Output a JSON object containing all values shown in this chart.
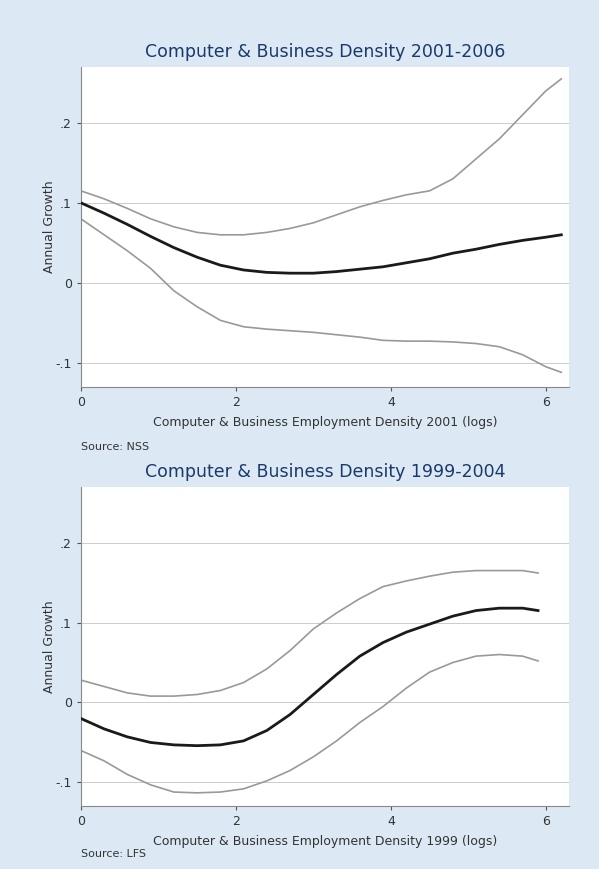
{
  "panel1": {
    "title": "Computer & Business Density 2001-2006",
    "xlabel": "Computer & Business Employment Density 2001 (logs)",
    "ylabel": "Annual Growth",
    "source": "Source: NSS",
    "xlim": [
      0,
      6.3
    ],
    "ylim": [
      -0.13,
      0.27
    ],
    "yticks": [
      -0.1,
      0,
      0.1,
      0.2
    ],
    "xticks": [
      0,
      2,
      4,
      6
    ],
    "main_x": [
      0.0,
      0.3,
      0.6,
      0.9,
      1.2,
      1.5,
      1.8,
      2.1,
      2.4,
      2.7,
      3.0,
      3.3,
      3.6,
      3.9,
      4.2,
      4.5,
      4.8,
      5.1,
      5.4,
      5.7,
      6.0,
      6.2
    ],
    "main_y": [
      0.1,
      0.087,
      0.073,
      0.058,
      0.044,
      0.032,
      0.022,
      0.016,
      0.013,
      0.012,
      0.012,
      0.014,
      0.017,
      0.02,
      0.025,
      0.03,
      0.037,
      0.042,
      0.048,
      0.053,
      0.057,
      0.06
    ],
    "upper_x": [
      0.0,
      0.3,
      0.6,
      0.9,
      1.2,
      1.5,
      1.8,
      2.1,
      2.4,
      2.7,
      3.0,
      3.3,
      3.6,
      3.9,
      4.2,
      4.5,
      4.8,
      5.1,
      5.4,
      5.7,
      6.0,
      6.2
    ],
    "upper_y": [
      0.115,
      0.105,
      0.093,
      0.08,
      0.07,
      0.063,
      0.06,
      0.06,
      0.063,
      0.068,
      0.075,
      0.085,
      0.095,
      0.103,
      0.11,
      0.115,
      0.13,
      0.155,
      0.18,
      0.21,
      0.24,
      0.255
    ],
    "lower_x": [
      0.0,
      0.3,
      0.6,
      0.9,
      1.2,
      1.5,
      1.8,
      2.1,
      2.4,
      2.7,
      3.0,
      3.3,
      3.6,
      3.9,
      4.2,
      4.5,
      4.8,
      5.1,
      5.4,
      5.7,
      6.0,
      6.2
    ],
    "lower_y": [
      0.08,
      0.06,
      0.04,
      0.018,
      -0.01,
      -0.03,
      -0.047,
      -0.055,
      -0.058,
      -0.06,
      -0.062,
      -0.065,
      -0.068,
      -0.072,
      -0.073,
      -0.073,
      -0.074,
      -0.076,
      -0.08,
      -0.09,
      -0.105,
      -0.112
    ]
  },
  "panel2": {
    "title": "Computer & Business Density 1999-2004",
    "xlabel": "Computer & Business Employment Density 1999 (logs)",
    "ylabel": "Annual Growth",
    "source": "Source: LFS",
    "xlim": [
      0,
      6.3
    ],
    "ylim": [
      -0.13,
      0.27
    ],
    "yticks": [
      -0.1,
      0,
      0.1,
      0.2
    ],
    "xticks": [
      0,
      2,
      4,
      6
    ],
    "main_x": [
      0.0,
      0.3,
      0.6,
      0.9,
      1.2,
      1.5,
      1.8,
      2.1,
      2.4,
      2.7,
      3.0,
      3.3,
      3.6,
      3.9,
      4.2,
      4.5,
      4.8,
      5.1,
      5.4,
      5.7,
      5.9
    ],
    "main_y": [
      -0.02,
      -0.033,
      -0.043,
      -0.05,
      -0.053,
      -0.054,
      -0.053,
      -0.048,
      -0.035,
      -0.015,
      0.01,
      0.035,
      0.058,
      0.075,
      0.088,
      0.098,
      0.108,
      0.115,
      0.118,
      0.118,
      0.115
    ],
    "upper_x": [
      0.0,
      0.3,
      0.6,
      0.9,
      1.2,
      1.5,
      1.8,
      2.1,
      2.4,
      2.7,
      3.0,
      3.3,
      3.6,
      3.9,
      4.2,
      4.5,
      4.8,
      5.1,
      5.4,
      5.7,
      5.9
    ],
    "upper_y": [
      0.028,
      0.02,
      0.012,
      0.008,
      0.008,
      0.01,
      0.015,
      0.025,
      0.042,
      0.065,
      0.092,
      0.112,
      0.13,
      0.145,
      0.152,
      0.158,
      0.163,
      0.165,
      0.165,
      0.165,
      0.162
    ],
    "lower_x": [
      0.0,
      0.3,
      0.6,
      0.9,
      1.2,
      1.5,
      1.8,
      2.1,
      2.4,
      2.7,
      3.0,
      3.3,
      3.6,
      3.9,
      4.2,
      4.5,
      4.8,
      5.1,
      5.4,
      5.7,
      5.9
    ],
    "lower_y": [
      -0.06,
      -0.073,
      -0.09,
      -0.103,
      -0.112,
      -0.113,
      -0.112,
      -0.108,
      -0.098,
      -0.085,
      -0.068,
      -0.048,
      -0.025,
      -0.005,
      0.018,
      0.038,
      0.05,
      0.058,
      0.06,
      0.058,
      0.052
    ]
  },
  "bg_color": "#dce9f5",
  "plot_bg_color": "#ffffff",
  "main_line_color": "#1a1a1a",
  "ci_line_color": "#999999",
  "title_color": "#1a3a6b",
  "label_color": "#333333",
  "source_color": "#333333",
  "grid_color": "#cccccc",
  "main_lw": 2.0,
  "ci_lw": 1.2
}
